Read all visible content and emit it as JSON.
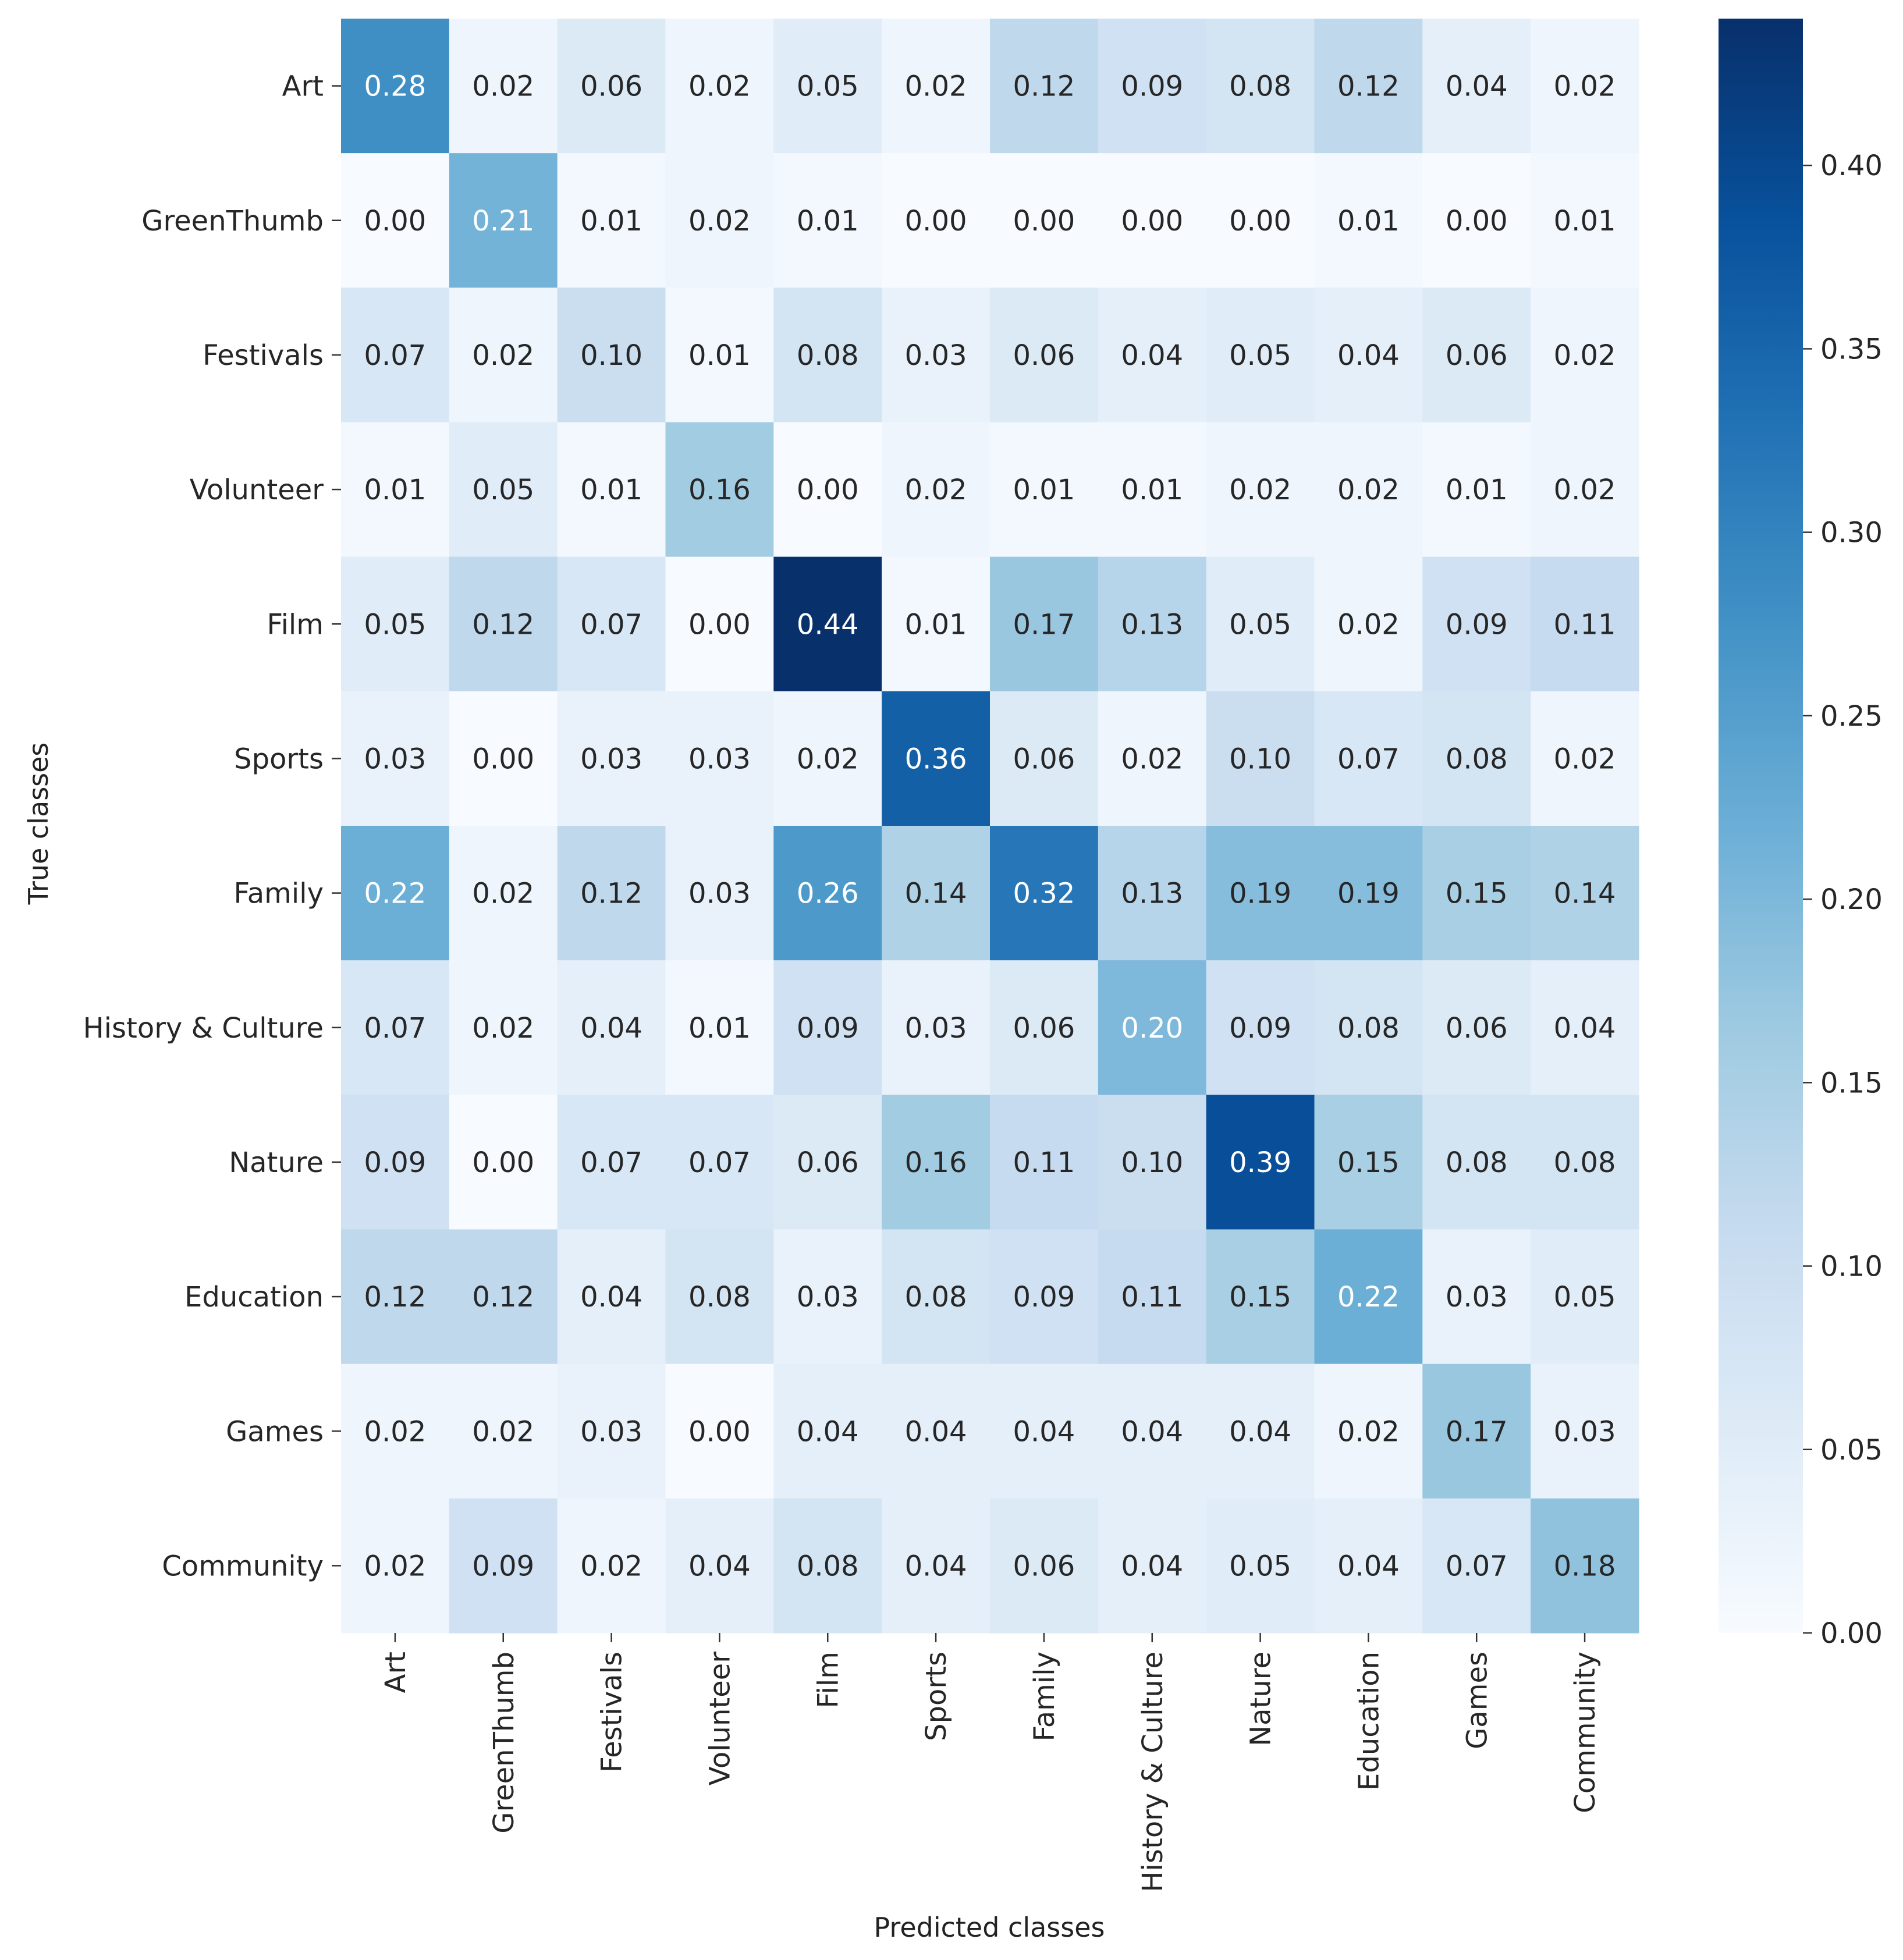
{
  "chart_data": {
    "type": "heatmap",
    "xlabel": "Predicted classes",
    "ylabel": "True classes",
    "x_categories": [
      "Art",
      "GreenThumb",
      "Festivals",
      "Volunteer",
      "Film",
      "Sports",
      "Family",
      "History & Culture",
      "Nature",
      "Education",
      "Games",
      "Community"
    ],
    "y_categories": [
      "Art",
      "GreenThumb",
      "Festivals",
      "Volunteer",
      "Film",
      "Sports",
      "Family",
      "History & Culture",
      "Nature",
      "Education",
      "Games",
      "Community"
    ],
    "values": [
      [
        0.28,
        0.02,
        0.06,
        0.02,
        0.05,
        0.02,
        0.12,
        0.09,
        0.08,
        0.12,
        0.04,
        0.02
      ],
      [
        0.0,
        0.21,
        0.01,
        0.02,
        0.01,
        0.0,
        0.0,
        0.0,
        0.0,
        0.01,
        0.0,
        0.01
      ],
      [
        0.07,
        0.02,
        0.1,
        0.01,
        0.08,
        0.03,
        0.06,
        0.04,
        0.05,
        0.04,
        0.06,
        0.02
      ],
      [
        0.01,
        0.05,
        0.01,
        0.16,
        0.0,
        0.02,
        0.01,
        0.01,
        0.02,
        0.02,
        0.01,
        0.02
      ],
      [
        0.05,
        0.12,
        0.07,
        0.0,
        0.44,
        0.01,
        0.17,
        0.13,
        0.05,
        0.02,
        0.09,
        0.11
      ],
      [
        0.03,
        0.0,
        0.03,
        0.03,
        0.02,
        0.36,
        0.06,
        0.02,
        0.1,
        0.07,
        0.08,
        0.02
      ],
      [
        0.22,
        0.02,
        0.12,
        0.03,
        0.26,
        0.14,
        0.32,
        0.13,
        0.19,
        0.19,
        0.15,
        0.14
      ],
      [
        0.07,
        0.02,
        0.04,
        0.01,
        0.09,
        0.03,
        0.06,
        0.2,
        0.09,
        0.08,
        0.06,
        0.04
      ],
      [
        0.09,
        0.0,
        0.07,
        0.07,
        0.06,
        0.16,
        0.11,
        0.1,
        0.39,
        0.15,
        0.08,
        0.08
      ],
      [
        0.12,
        0.12,
        0.04,
        0.08,
        0.03,
        0.08,
        0.09,
        0.11,
        0.15,
        0.22,
        0.03,
        0.05
      ],
      [
        0.02,
        0.02,
        0.03,
        0.0,
        0.04,
        0.04,
        0.04,
        0.04,
        0.04,
        0.02,
        0.17,
        0.03
      ],
      [
        0.02,
        0.09,
        0.02,
        0.04,
        0.08,
        0.04,
        0.06,
        0.04,
        0.05,
        0.04,
        0.07,
        0.18
      ]
    ],
    "colorbar": {
      "colormap": "Blues",
      "vmin": 0.0,
      "vmax": 0.44,
      "ticks": [
        0.0,
        0.05,
        0.1,
        0.15,
        0.2,
        0.25,
        0.3,
        0.35,
        0.4
      ],
      "tick_labels": [
        "0.00",
        "0.05",
        "0.10",
        "0.15",
        "0.20",
        "0.25",
        "0.30",
        "0.35",
        "0.40"
      ]
    },
    "annotation_format": "0.00"
  }
}
